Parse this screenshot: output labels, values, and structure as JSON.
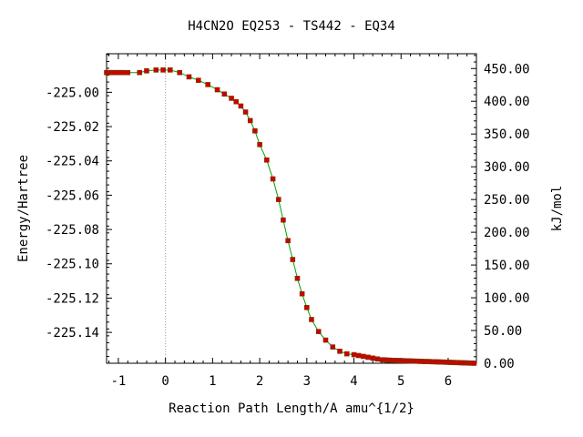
{
  "chart_data": {
    "type": "line",
    "title": "H4CN2O   EQ253 - TS442 - EQ34",
    "xlabel": "Reaction Path Length/A amu^{1/2}",
    "ylabel": "Energy/Hartree",
    "y2label": "kJ/mol",
    "xlim": [
      -1.25,
      6.6
    ],
    "ylim": [
      -225.158,
      -224.9775
    ],
    "y2lim": [
      0,
      472.6
    ],
    "x_ticks": [
      -1,
      0,
      1,
      2,
      3,
      4,
      5,
      6
    ],
    "x_tick_labels": [
      "-1",
      "0",
      "1",
      "2",
      "3",
      "4",
      "5",
      "6"
    ],
    "y_ticks": [
      -225.14,
      -225.12,
      -225.1,
      -225.08,
      -225.06,
      -225.04,
      -225.02,
      -225.0
    ],
    "y_tick_labels": [
      "-225.14",
      "-225.12",
      "-225.10",
      "-225.08",
      "-225.06",
      "-225.04",
      "-225.02",
      "-225.00"
    ],
    "y2_ticks": [
      0,
      50,
      100,
      150,
      200,
      250,
      300,
      350,
      400,
      450
    ],
    "y2_tick_labels": [
      "0.00",
      "50.00",
      "100.00",
      "150.00",
      "200.00",
      "250.00",
      "300.00",
      "350.00",
      "400.00",
      "450.00"
    ],
    "ts_marker_x": 0,
    "grid": false,
    "line_color": "#00a000",
    "marker_color": "#cc0000",
    "series": [
      {
        "x": [
          -1.25,
          -1.2,
          -1.15,
          -1.1,
          -1.05,
          -1.0,
          -0.95,
          -0.9,
          -0.8,
          -0.55,
          -0.4,
          -0.2,
          -0.05,
          0.1,
          0.3,
          0.5,
          0.7,
          0.9,
          1.1,
          1.25,
          1.4,
          1.5,
          1.6,
          1.7,
          1.8,
          1.9,
          2.0,
          2.15,
          2.28,
          2.4,
          2.5,
          2.6,
          2.7,
          2.8,
          2.9,
          3.0,
          3.1,
          3.25,
          3.4,
          3.55,
          3.7,
          3.85,
          4.0,
          4.1,
          4.2,
          4.3,
          4.4,
          4.5,
          4.6,
          4.65,
          4.7,
          4.75,
          4.8,
          4.85,
          4.9,
          4.95,
          5.0,
          5.05,
          5.1,
          5.15,
          5.2,
          5.25,
          5.3,
          5.35,
          5.4,
          5.45,
          5.5,
          5.55,
          5.6,
          5.65,
          5.7,
          5.75,
          5.8,
          5.85,
          5.9,
          5.95,
          6.0,
          6.05,
          6.1,
          6.15,
          6.2,
          6.25,
          6.3,
          6.35,
          6.4,
          6.45,
          6.5,
          6.55
        ],
        "y": [
          -224.9885,
          -224.9885,
          -224.9885,
          -224.9885,
          -224.9885,
          -224.9885,
          -224.9885,
          -224.9885,
          -224.9885,
          -224.9885,
          -224.9875,
          -224.987,
          -224.987,
          -224.987,
          -224.9885,
          -224.991,
          -224.993,
          -224.9955,
          -224.9985,
          -225.001,
          -225.0035,
          -225.0055,
          -225.008,
          -225.0115,
          -225.0165,
          -225.0225,
          -225.0305,
          -225.0395,
          -225.0505,
          -225.0625,
          -225.0745,
          -225.0865,
          -225.0975,
          -225.1085,
          -225.1175,
          -225.1255,
          -225.1325,
          -225.1395,
          -225.1445,
          -225.1485,
          -225.151,
          -225.1525,
          -225.153,
          -225.1535,
          -225.154,
          -225.1545,
          -225.155,
          -225.1555,
          -225.156,
          -225.156,
          -225.1562,
          -225.1562,
          -225.1563,
          -225.1563,
          -225.1564,
          -225.1564,
          -225.1565,
          -225.1565,
          -225.1566,
          -225.1566,
          -225.1567,
          -225.1567,
          -225.1568,
          -225.1568,
          -225.1569,
          -225.1569,
          -225.157,
          -225.157,
          -225.157,
          -225.1571,
          -225.1571,
          -225.1572,
          -225.1572,
          -225.1573,
          -225.1573,
          -225.1574,
          -225.1574,
          -225.1575,
          -225.1575,
          -225.1576,
          -225.1576,
          -225.1577,
          -225.1577,
          -225.1578,
          -225.1578,
          -225.1579,
          -225.1579,
          -225.158
        ]
      }
    ]
  }
}
